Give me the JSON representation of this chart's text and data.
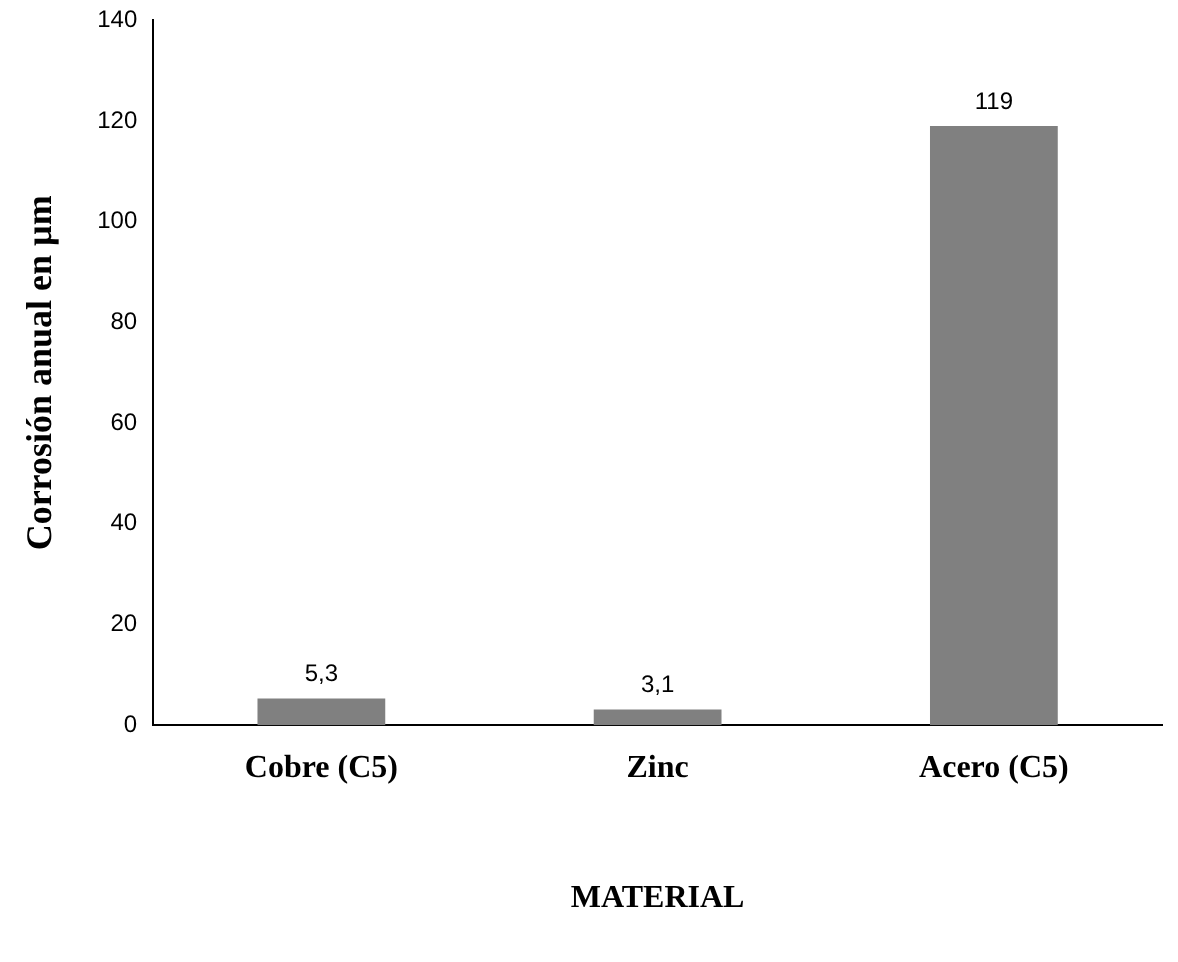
{
  "chart_data": {
    "type": "bar",
    "xlabel": "MATERIAL",
    "ylabel": "Corrosión anual en µm",
    "categories": [
      "Cobre (C5)",
      "Zinc",
      "Acero (C5)"
    ],
    "values": [
      5.3,
      3.1,
      119
    ],
    "value_labels": [
      "5,3",
      "3,1",
      "119"
    ],
    "color": "#808080",
    "ylim": [
      0,
      140
    ],
    "yticks": [
      0,
      20,
      40,
      60,
      80,
      100,
      120,
      140
    ],
    "grid": false,
    "legend": false
  }
}
